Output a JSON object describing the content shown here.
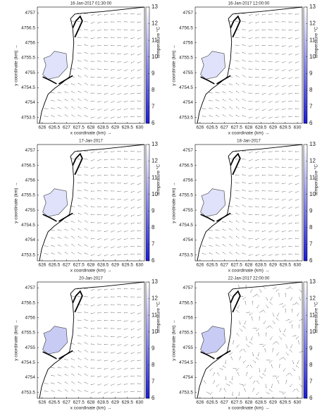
{
  "chart_data": [
    {
      "type": "quiver",
      "title": "16-Jan-2017 01:30:00",
      "xlabel": "x coordinate (km) →",
      "ylabel": "y coordinate (km) →",
      "xlim": [
        625.8,
        630.2
      ],
      "ylim": [
        4753.3,
        4757.2
      ],
      "xticks": [
        626,
        626.5,
        627,
        627.5,
        628,
        628.5,
        629,
        629.5,
        630
      ],
      "yticks": [
        4753.5,
        4754,
        4754.5,
        4755,
        4755.5,
        4756,
        4756.5,
        4757
      ],
      "colorbar": {
        "label": "temperature °C",
        "lim": [
          6,
          13
        ],
        "ticks": [
          6,
          7,
          8,
          9,
          10,
          11,
          12,
          13
        ],
        "colors": [
          "#1a1ad8",
          "#ffffff"
        ]
      }
    },
    {
      "type": "quiver",
      "title": "16-Jan-2017 12:00:00",
      "xlabel": "x coordinate (km) →",
      "ylabel": "y coordinate (km) →",
      "xlim": [
        625.8,
        630.2
      ],
      "ylim": [
        4753.3,
        4757.2
      ],
      "xticks": [
        626,
        626.5,
        627,
        627.5,
        628,
        628.5,
        629,
        629.5,
        630
      ],
      "yticks": [
        4753.5,
        4754,
        4754.5,
        4755,
        4755.5,
        4756,
        4756.5,
        4757
      ],
      "colorbar": {
        "label": "temperature °C",
        "lim": [
          6,
          13
        ],
        "ticks": [
          6,
          7,
          8,
          9,
          10,
          11,
          12,
          13
        ],
        "colors": [
          "#1a1ad8",
          "#ffffff"
        ]
      }
    },
    {
      "type": "quiver",
      "title": "17-Jan-2017",
      "xlabel": "x coordinate (km) →",
      "ylabel": "y coordinate (km) →",
      "xlim": [
        625.8,
        630.2
      ],
      "ylim": [
        4753.3,
        4757.2
      ],
      "xticks": [
        626,
        626.5,
        627,
        627.5,
        628,
        628.5,
        629,
        629.5,
        630
      ],
      "yticks": [
        4753.5,
        4754,
        4754.5,
        4755,
        4755.5,
        4756,
        4756.5,
        4757
      ],
      "colorbar": {
        "label": "temperature °C",
        "lim": [
          6,
          13
        ],
        "ticks": [
          6,
          7,
          8,
          9,
          10,
          11,
          12,
          13
        ],
        "colors": [
          "#1a1ad8",
          "#ffffff"
        ]
      }
    },
    {
      "type": "quiver",
      "title": "18-Jan-2017",
      "xlabel": "x coordinate (km) →",
      "ylabel": "y coordinate (km) →",
      "xlim": [
        625.8,
        630.2
      ],
      "ylim": [
        4753.3,
        4757.2
      ],
      "xticks": [
        626,
        626.5,
        627,
        627.5,
        628,
        628.5,
        629,
        629.5,
        630
      ],
      "yticks": [
        4753.5,
        4754,
        4754.5,
        4755,
        4755.5,
        4756,
        4756.5,
        4757
      ],
      "colorbar": {
        "label": "temperature °C",
        "lim": [
          6,
          13
        ],
        "ticks": [
          6,
          7,
          8,
          9,
          10,
          11,
          12,
          13
        ],
        "colors": [
          "#1a1ad8",
          "#ffffff"
        ]
      }
    },
    {
      "type": "quiver",
      "title": "20-Jan-2017",
      "xlabel": "x coordinate (km) →",
      "ylabel": "y coordinate (km) →",
      "xlim": [
        625.8,
        630.2
      ],
      "ylim": [
        4753.3,
        4757.2
      ],
      "xticks": [
        626,
        626.5,
        627,
        627.5,
        628,
        628.5,
        629,
        629.5,
        630
      ],
      "yticks": [
        4753.5,
        4754,
        4754.5,
        4755,
        4755.5,
        4756,
        4756.5,
        4757
      ],
      "colorbar": {
        "label": "temperature °C",
        "lim": [
          6,
          13
        ],
        "ticks": [
          6,
          7,
          8,
          9,
          10,
          11,
          12,
          13
        ],
        "colors": [
          "#1a1ad8",
          "#ffffff"
        ]
      }
    },
    {
      "type": "quiver",
      "title": "22-Jan-2017 22:00:00",
      "xlabel": "x coordinate (km) →",
      "ylabel": "y coordinate (km) →",
      "xlim": [
        625.8,
        630.2
      ],
      "ylim": [
        4753.3,
        4757.2
      ],
      "xticks": [
        626,
        626.5,
        627,
        627.5,
        628,
        628.5,
        629,
        629.5,
        630
      ],
      "yticks": [
        4753.5,
        4754,
        4754.5,
        4755,
        4755.5,
        4756,
        4756.5,
        4757
      ],
      "colorbar": {
        "label": "temperature °C",
        "lim": [
          6,
          13
        ],
        "ticks": [
          6,
          7,
          8,
          9,
          10,
          11,
          12,
          13
        ],
        "colors": [
          "#1a1ad8",
          "#ffffff"
        ]
      }
    }
  ]
}
